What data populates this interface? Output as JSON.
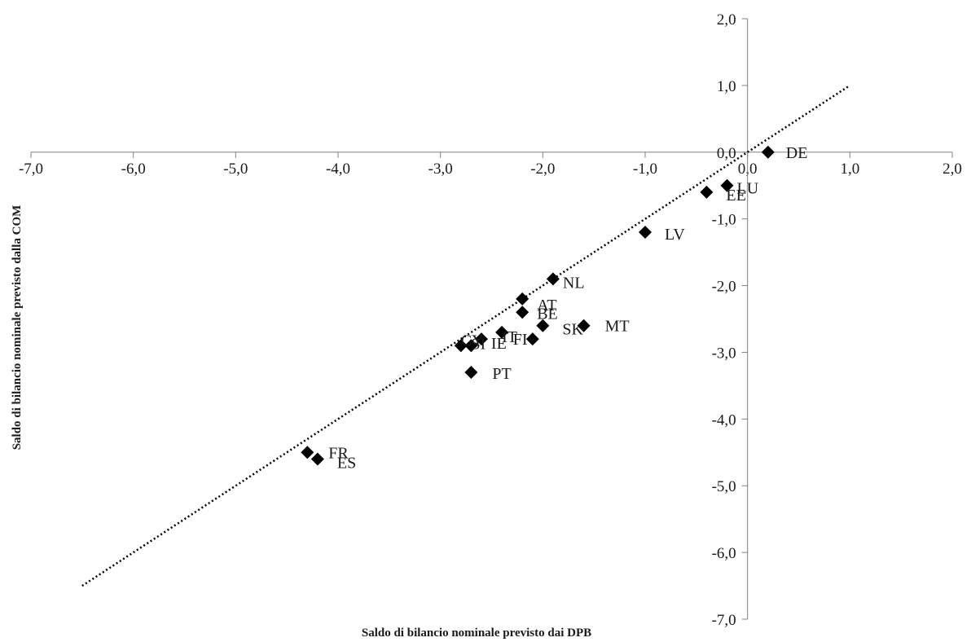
{
  "chart_data": {
    "type": "scatter",
    "xlabel": "Saldo di bilancio nominale previsto dai DPB",
    "ylabel": "Saldo di bilancio nominale previsto dalla COM",
    "xlim": [
      -7.0,
      2.0
    ],
    "ylim": [
      -7.0,
      2.0
    ],
    "x_ticks": [
      "-7,0",
      "-6,0",
      "-5,0",
      "-4,0",
      "-3,0",
      "-2,0",
      "-1,0",
      "0,0",
      "1,0",
      "2,0"
    ],
    "y_ticks": [
      "2,0",
      "1,0",
      "0,0",
      "-1,0",
      "-2,0",
      "-3,0",
      "-4,0",
      "-5,0",
      "-6,0",
      "-7,0"
    ],
    "grid": false,
    "marker": "diamond",
    "marker_color": "#000000",
    "reference_line": {
      "style": "dotted",
      "from": [
        -6.5,
        -6.5
      ],
      "to": [
        1.0,
        1.0
      ]
    },
    "points": [
      {
        "label": "DE",
        "x": 0.2,
        "y": 0.0
      },
      {
        "label": "LU",
        "x": -0.2,
        "y": -0.5
      },
      {
        "label": "EE",
        "x": -0.4,
        "y": -0.6
      },
      {
        "label": "LV",
        "x": -1.0,
        "y": -1.2
      },
      {
        "label": "NL",
        "x": -1.9,
        "y": -1.9
      },
      {
        "label": "AT",
        "x": -2.2,
        "y": -2.2
      },
      {
        "label": "BE",
        "x": -2.2,
        "y": -2.4
      },
      {
        "label": "SK",
        "x": -2.0,
        "y": -2.6
      },
      {
        "label": "FI",
        "x": -2.1,
        "y": -2.8
      },
      {
        "label": "IT",
        "x": -2.4,
        "y": -2.7
      },
      {
        "label": "MT",
        "x": -1.6,
        "y": -2.6
      },
      {
        "label": "IE",
        "x": -2.6,
        "y": -2.8
      },
      {
        "label": "CY",
        "x": -2.8,
        "y": -2.9
      },
      {
        "label": "SI",
        "x": -2.7,
        "y": -2.9
      },
      {
        "label": "PT",
        "x": -2.7,
        "y": -3.3
      },
      {
        "label": "FR",
        "x": -4.3,
        "y": -4.5
      },
      {
        "label": "ES",
        "x": -4.2,
        "y": -4.6
      }
    ]
  }
}
